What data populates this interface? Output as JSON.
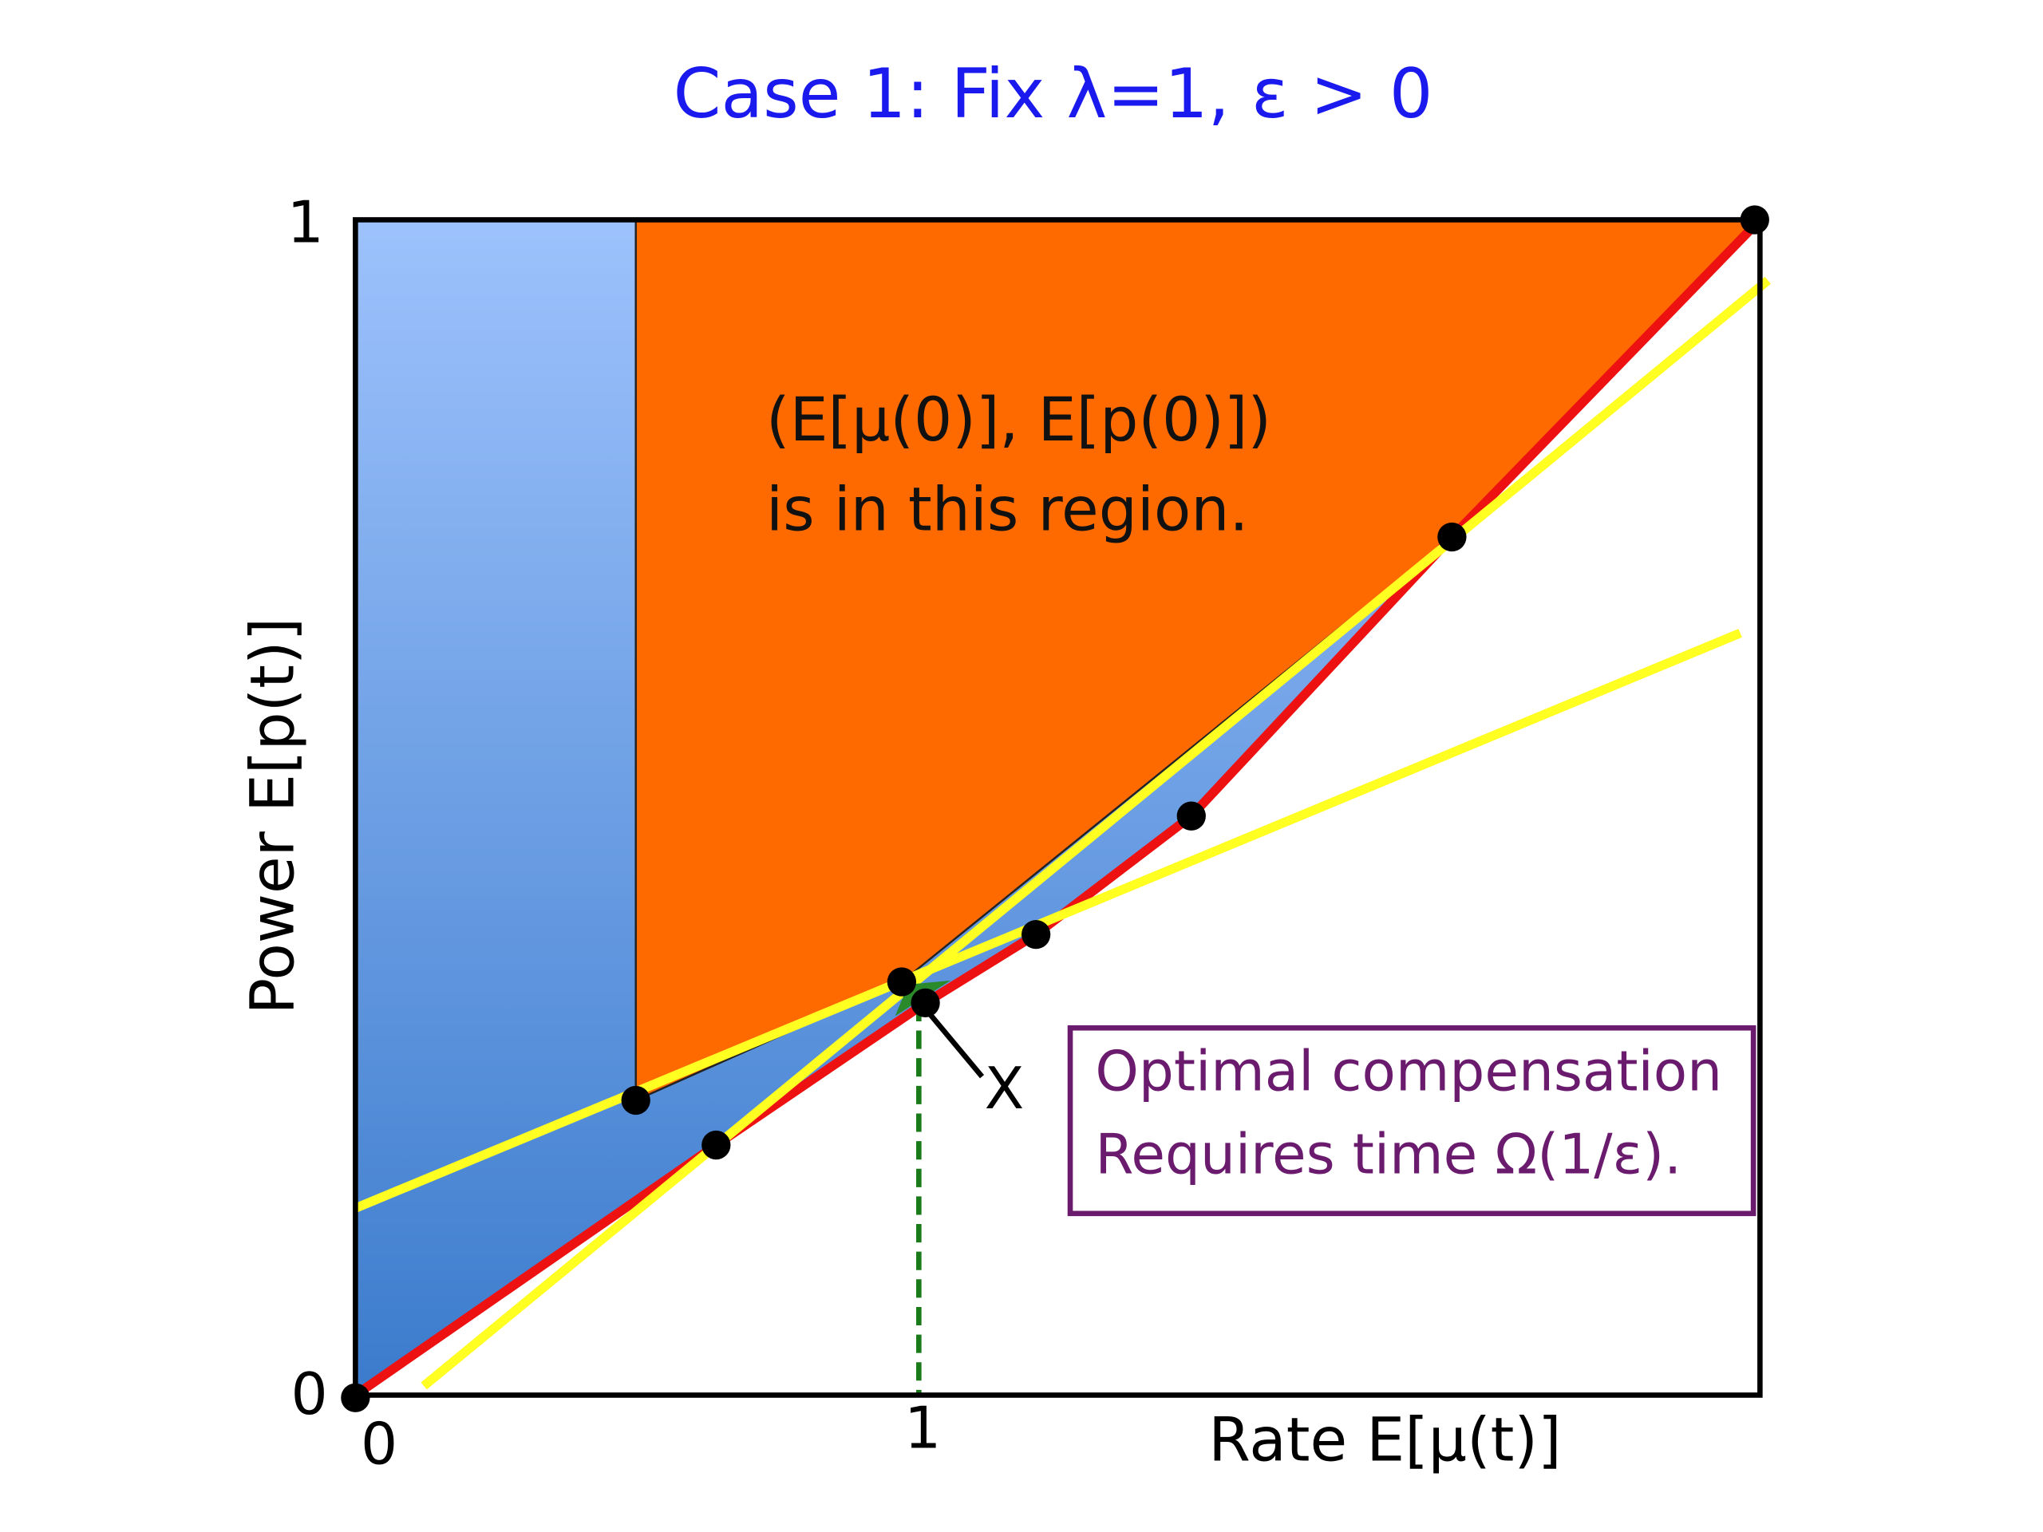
{
  "title": "Case 1: Fix λ=1, ε > 0",
  "y_axis": {
    "label": "Power E[p(t)]",
    "ticks": [
      "0",
      "1"
    ]
  },
  "x_axis": {
    "label": "Rate E[μ(t)]",
    "ticks": [
      "0",
      "1"
    ]
  },
  "region_label": [
    "(E[μ(0)], E[p(0)])",
    "is in this region."
  ],
  "point_label": "X",
  "note": [
    "Optimal compensation",
    "Requires time Ω(1/ε)."
  ]
}
